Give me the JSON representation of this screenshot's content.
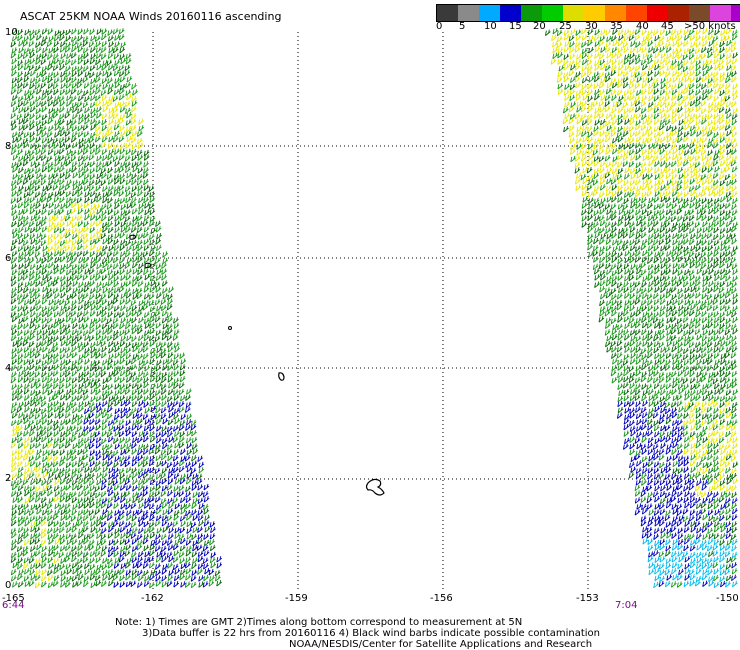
{
  "title": "ASCAT 25KM NOAA Winds 20160116 ascending",
  "legend": {
    "colors": [
      "#3a3a3a",
      "#8a8a8a",
      "#00aaff",
      "#0000cc",
      "#0a9a0a",
      "#00cc00",
      "#dddd00",
      "#ffcc00",
      "#ff8800",
      "#ff4400",
      "#ee0000",
      "#aa2200",
      "#7a4a2a",
      "#dd44dd",
      "#aa00cc",
      "#6600aa"
    ],
    "tick_labels": [
      "0",
      "5",
      "10",
      "15",
      "20",
      "25",
      "30",
      "35",
      "40",
      "45",
      ">50 knots"
    ]
  },
  "axes": {
    "x_labels": [
      "-165",
      "-162",
      "-159",
      "-156",
      "-153",
      "-150"
    ],
    "y_labels": [
      "0",
      "2",
      "4",
      "6",
      "8",
      "10"
    ]
  },
  "times": {
    "left": "6:44",
    "right": "7:04"
  },
  "notes": {
    "line1": "Note: 1) Times are GMT 2)Times along bottom correspond to measurement at 5N",
    "line2": "3)Data buffer is 22 hrs from 20160116 4) Black wind barbs indicate possible contamination",
    "line3": "NOAA/NESDIS/Center for Satellite Applications and Research"
  }
}
